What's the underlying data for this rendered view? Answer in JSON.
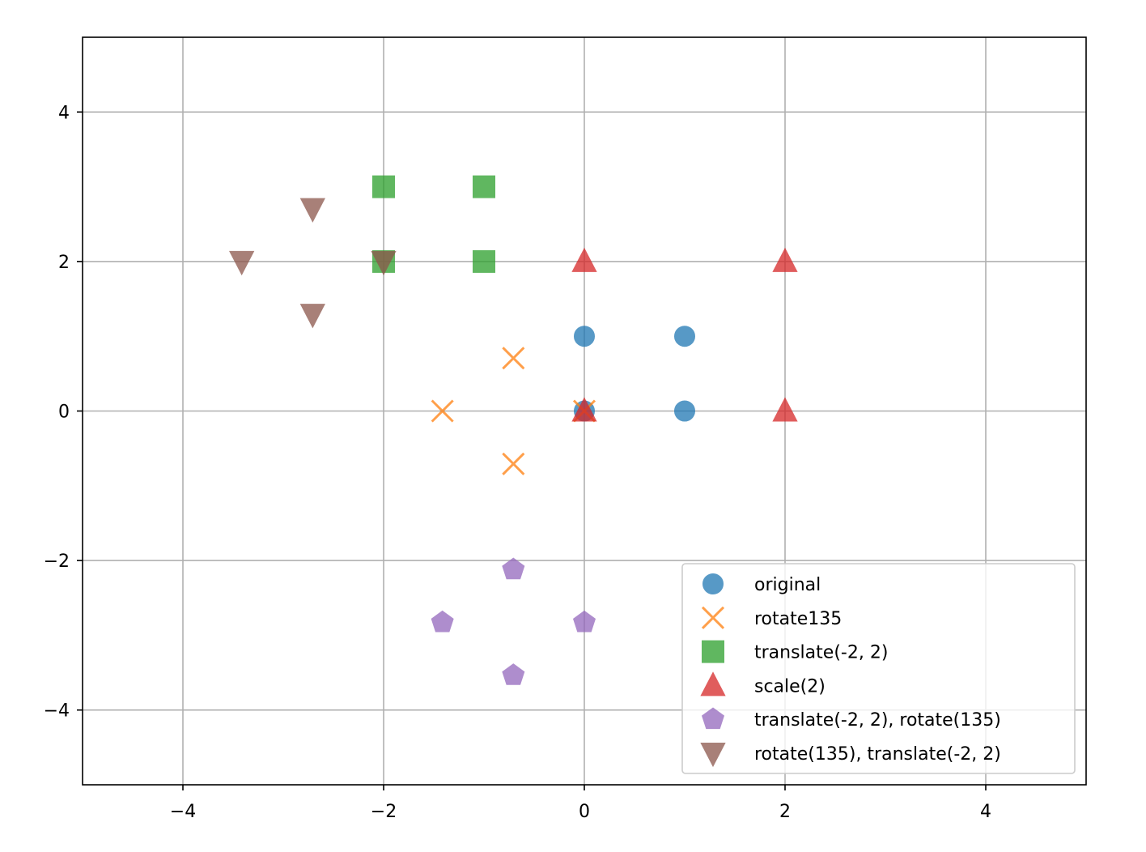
{
  "chart_data": {
    "type": "scatter",
    "title": "",
    "xlabel": "",
    "ylabel": "",
    "xlim": [
      -5,
      5
    ],
    "ylim": [
      -5,
      5
    ],
    "xticks": [
      -4,
      -2,
      0,
      2,
      4
    ],
    "yticks": [
      -4,
      -2,
      0,
      2,
      4
    ],
    "xtick_labels": [
      "−4",
      "−2",
      "0",
      "2",
      "4"
    ],
    "ytick_labels": [
      "−4",
      "−2",
      "0",
      "2",
      "4"
    ],
    "grid": true,
    "legend_position": "lower-right",
    "series": [
      {
        "name": "original",
        "marker": "circle",
        "color": "#1f77b4",
        "points": [
          [
            0,
            0
          ],
          [
            1,
            0
          ],
          [
            1,
            1
          ],
          [
            0,
            1
          ]
        ]
      },
      {
        "name": "rotate135",
        "marker": "x",
        "color": "#ff7f0e",
        "points": [
          [
            0,
            0
          ],
          [
            -0.707,
            0.707
          ],
          [
            -1.414,
            0
          ],
          [
            -0.707,
            -0.707
          ]
        ]
      },
      {
        "name": "translate(-2, 2)",
        "marker": "square",
        "color": "#2ca02c",
        "points": [
          [
            -2,
            2
          ],
          [
            -1,
            2
          ],
          [
            -1,
            3
          ],
          [
            -2,
            3
          ]
        ]
      },
      {
        "name": "scale(2)",
        "marker": "triangle-up",
        "color": "#d62728",
        "points": [
          [
            0,
            0
          ],
          [
            2,
            0
          ],
          [
            2,
            2
          ],
          [
            0,
            2
          ]
        ]
      },
      {
        "name": "translate(-2, 2), rotate(135)",
        "marker": "pentagon",
        "color": "#9467bd",
        "points": [
          [
            0,
            -2.828
          ],
          [
            -0.707,
            -3.536
          ],
          [
            -1.414,
            -2.828
          ],
          [
            -0.707,
            -2.121
          ]
        ]
      },
      {
        "name": "rotate(135), translate(-2, 2)",
        "marker": "triangle-down",
        "color": "#8c564b",
        "points": [
          [
            -2,
            2
          ],
          [
            -2.707,
            2.707
          ],
          [
            -3.414,
            2
          ],
          [
            -2.707,
            1.293
          ]
        ]
      }
    ]
  }
}
